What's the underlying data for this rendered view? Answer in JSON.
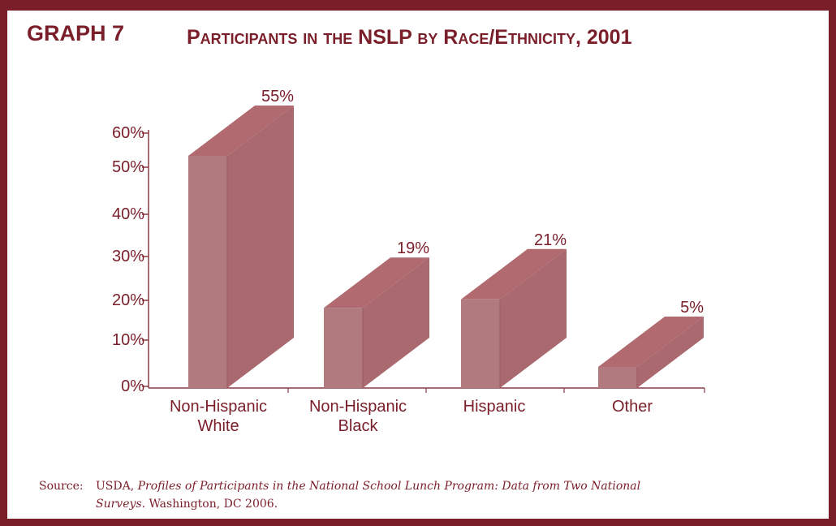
{
  "graph_label": "GRAPH 7",
  "title": "Participants in the NSLP by Race/Ethnicity, 2001",
  "source": {
    "prefix": "Source:",
    "org": "USDA,",
    "title_italic_1": "Profiles of Participants in the National School Lunch Program:  Data from Two National",
    "title_italic_2": "Surveys.",
    "rest": "Washington, DC 2006."
  },
  "colors": {
    "frame": "#7a1e2a",
    "text": "#7a1e2a",
    "bar_front": "#b07a7f",
    "bar_side": "#a9696f",
    "bar_top": "#b06a70",
    "axis": "#8a3a44"
  },
  "chart_data": {
    "type": "bar",
    "style": "3d-column",
    "categories": [
      [
        "Non-Hispanic",
        "White"
      ],
      [
        "Non-Hispanic",
        "Black"
      ],
      [
        "Hispanic"
      ],
      [
        "Other"
      ]
    ],
    "values": [
      55,
      19,
      21,
      5
    ],
    "data_labels": [
      "55%",
      "19%",
      "21%",
      "5%"
    ],
    "y_ticks": [
      0,
      10,
      20,
      30,
      40,
      50,
      60
    ],
    "y_tick_labels": [
      "0%",
      "10%",
      "20%",
      "30%",
      "40%",
      "50%",
      "60%"
    ],
    "ylim": [
      0,
      60
    ],
    "grid": false,
    "legend": "none"
  }
}
